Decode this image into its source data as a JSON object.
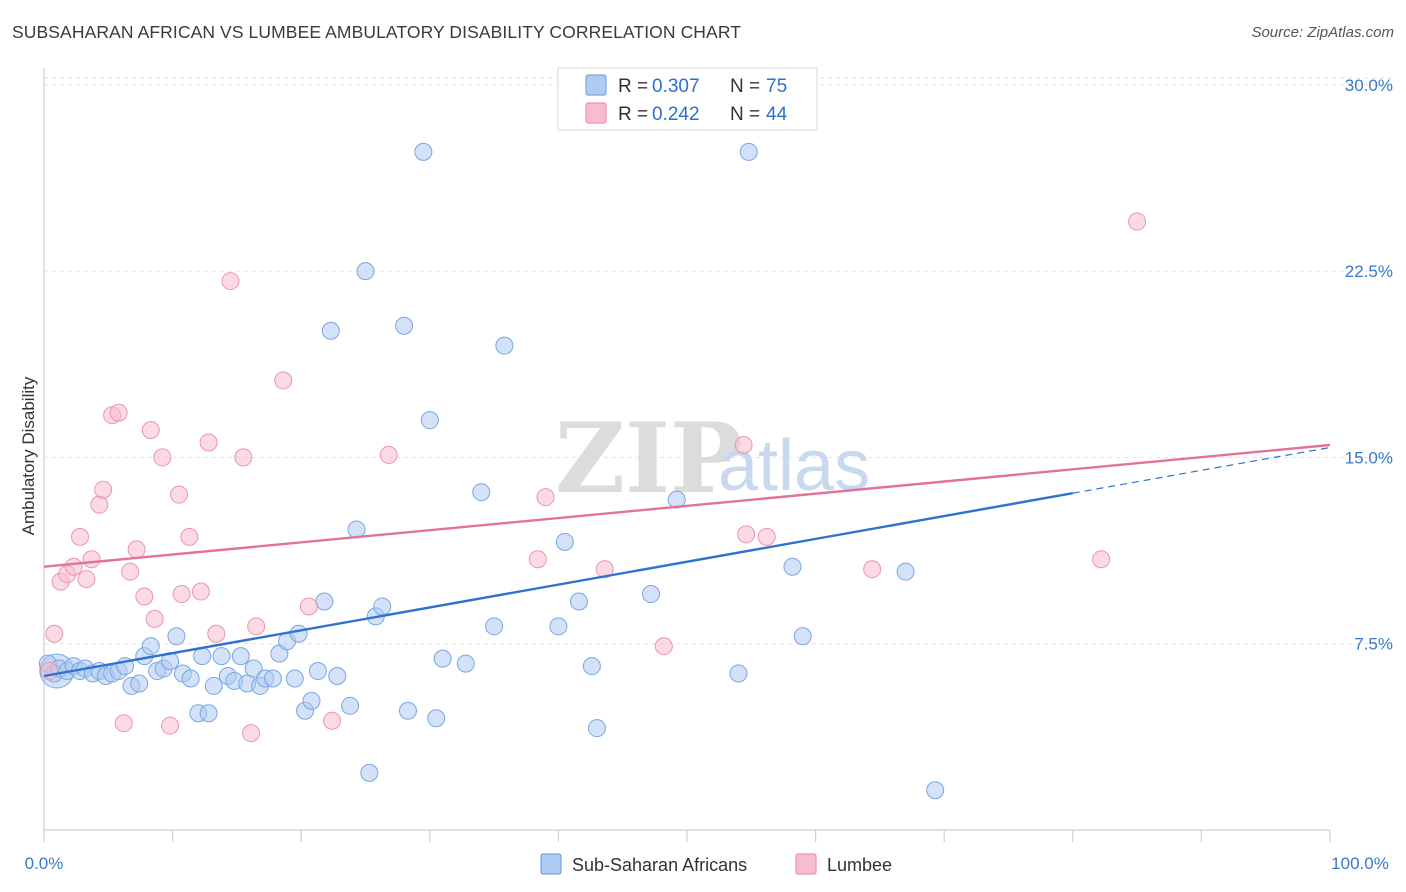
{
  "title": "SUBSAHARAN AFRICAN VS LUMBEE AMBULATORY DISABILITY CORRELATION CHART",
  "source": "Source: ZipAtlas.com",
  "watermark": {
    "zip": "ZIP",
    "atlas": "atlas"
  },
  "legend": {
    "rows": [
      {
        "r_label": "R = ",
        "r_value": "0.307",
        "n_label": "N = ",
        "n_value": "75",
        "color": "#aecbf3"
      },
      {
        "r_label": "R = ",
        "r_value": "0.242",
        "n_label": "N = ",
        "n_value": "44",
        "color": "#f7bccd"
      }
    ]
  },
  "bottom_legend": [
    {
      "label": "Sub-Saharan Africans",
      "color": "#aecbf3"
    },
    {
      "label": "Lumbee",
      "color": "#f7bccd"
    }
  ],
  "chart_data": {
    "type": "scatter",
    "title": "SUBSAHARAN AFRICAN VS LUMBEE AMBULATORY DISABILITY CORRELATION CHART",
    "xlabel": "",
    "ylabel": "Ambulatory Disability",
    "xlim": [
      0,
      100
    ],
    "ylim": [
      0,
      31
    ],
    "x_tick_labels": [
      "0.0%",
      "100.0%"
    ],
    "y_ticks": [
      7.5,
      15.0,
      22.5,
      30.0
    ],
    "y_tick_labels": [
      "7.5%",
      "15.0%",
      "22.5%",
      "30.0%"
    ],
    "grid": "horizontal dashed",
    "legend_position": "top-center",
    "series": [
      {
        "name": "Sub-Saharan Africans",
        "color": "#aecbf3",
        "stroke": "#7aa7e0",
        "line_color": "#2f72d0",
        "trend": {
          "x0": 0,
          "y0": 6.2,
          "x1": 100,
          "y1": 15.4,
          "solid_until": 80
        },
        "points": [
          [
            0.3,
            6.7
          ],
          [
            0.8,
            6.3
          ],
          [
            1.2,
            6.5
          ],
          [
            1.8,
            6.4
          ],
          [
            2.3,
            6.6
          ],
          [
            2.8,
            6.4
          ],
          [
            3.2,
            6.5
          ],
          [
            3.8,
            6.3
          ],
          [
            4.3,
            6.4
          ],
          [
            4.8,
            6.2
          ],
          [
            5.3,
            6.3
          ],
          [
            5.8,
            6.4
          ],
          [
            6.3,
            6.6
          ],
          [
            6.8,
            5.8
          ],
          [
            7.4,
            5.9
          ],
          [
            7.8,
            7.0
          ],
          [
            8.3,
            7.4
          ],
          [
            8.8,
            6.4
          ],
          [
            9.3,
            6.5
          ],
          [
            9.8,
            6.8
          ],
          [
            10.3,
            7.8
          ],
          [
            10.8,
            6.3
          ],
          [
            11.4,
            6.1
          ],
          [
            12.0,
            4.7
          ],
          [
            12.3,
            7.0
          ],
          [
            12.8,
            4.7
          ],
          [
            13.2,
            5.8
          ],
          [
            13.8,
            7.0
          ],
          [
            14.3,
            6.2
          ],
          [
            14.8,
            6.0
          ],
          [
            15.3,
            7.0
          ],
          [
            15.8,
            5.9
          ],
          [
            16.3,
            6.5
          ],
          [
            16.8,
            5.8
          ],
          [
            17.2,
            6.1
          ],
          [
            17.8,
            6.1
          ],
          [
            18.3,
            7.1
          ],
          [
            18.9,
            7.6
          ],
          [
            19.5,
            6.1
          ],
          [
            19.8,
            7.9
          ],
          [
            20.3,
            4.8
          ],
          [
            20.8,
            5.2
          ],
          [
            21.3,
            6.4
          ],
          [
            21.8,
            9.2
          ],
          [
            22.3,
            20.1
          ],
          [
            22.8,
            6.2
          ],
          [
            23.8,
            5.0
          ],
          [
            24.3,
            12.1
          ],
          [
            25.0,
            22.5
          ],
          [
            25.3,
            2.3
          ],
          [
            25.8,
            8.6
          ],
          [
            26.3,
            9.0
          ],
          [
            28.0,
            20.3
          ],
          [
            28.3,
            4.8
          ],
          [
            29.5,
            27.3
          ],
          [
            30.0,
            16.5
          ],
          [
            30.5,
            4.5
          ],
          [
            31.0,
            6.9
          ],
          [
            32.8,
            6.7
          ],
          [
            34.0,
            13.6
          ],
          [
            35.0,
            8.2
          ],
          [
            35.8,
            19.5
          ],
          [
            40.0,
            8.2
          ],
          [
            40.5,
            11.6
          ],
          [
            41.6,
            9.2
          ],
          [
            42.6,
            6.6
          ],
          [
            43.0,
            4.1
          ],
          [
            47.2,
            9.5
          ],
          [
            49.2,
            13.3
          ],
          [
            54.0,
            6.3
          ],
          [
            54.8,
            27.3
          ],
          [
            58.2,
            10.6
          ],
          [
            59.0,
            7.8
          ],
          [
            67.0,
            10.4
          ],
          [
            69.3,
            1.6
          ]
        ],
        "big_point": [
          1.0,
          6.4
        ]
      },
      {
        "name": "Lumbee",
        "color": "#f7bccd",
        "stroke": "#eb95b0",
        "line_color": "#e3729a",
        "trend": {
          "x0": 0,
          "y0": 10.6,
          "x1": 100,
          "y1": 15.5,
          "solid_until": 100
        },
        "points": [
          [
            0.4,
            6.4
          ],
          [
            0.8,
            7.9
          ],
          [
            1.3,
            10.0
          ],
          [
            1.8,
            10.3
          ],
          [
            2.3,
            10.6
          ],
          [
            2.8,
            11.8
          ],
          [
            3.3,
            10.1
          ],
          [
            3.7,
            10.9
          ],
          [
            4.3,
            13.1
          ],
          [
            4.6,
            13.7
          ],
          [
            5.3,
            16.7
          ],
          [
            5.8,
            16.8
          ],
          [
            6.2,
            4.3
          ],
          [
            6.7,
            10.4
          ],
          [
            7.2,
            11.3
          ],
          [
            7.8,
            9.4
          ],
          [
            8.3,
            16.1
          ],
          [
            8.6,
            8.5
          ],
          [
            9.2,
            15.0
          ],
          [
            9.8,
            4.2
          ],
          [
            10.5,
            13.5
          ],
          [
            10.7,
            9.5
          ],
          [
            11.3,
            11.8
          ],
          [
            12.2,
            9.6
          ],
          [
            12.8,
            15.6
          ],
          [
            13.4,
            7.9
          ],
          [
            14.5,
            22.1
          ],
          [
            15.5,
            15.0
          ],
          [
            16.1,
            3.9
          ],
          [
            16.5,
            8.2
          ],
          [
            18.6,
            18.1
          ],
          [
            20.6,
            9.0
          ],
          [
            22.4,
            4.4
          ],
          [
            26.8,
            15.1
          ],
          [
            38.4,
            10.9
          ],
          [
            39.0,
            13.4
          ],
          [
            43.6,
            10.5
          ],
          [
            48.2,
            7.4
          ],
          [
            54.4,
            15.5
          ],
          [
            54.6,
            11.9
          ],
          [
            56.2,
            11.8
          ],
          [
            64.4,
            10.5
          ],
          [
            85.0,
            24.5
          ],
          [
            82.2,
            10.9
          ]
        ]
      }
    ]
  }
}
